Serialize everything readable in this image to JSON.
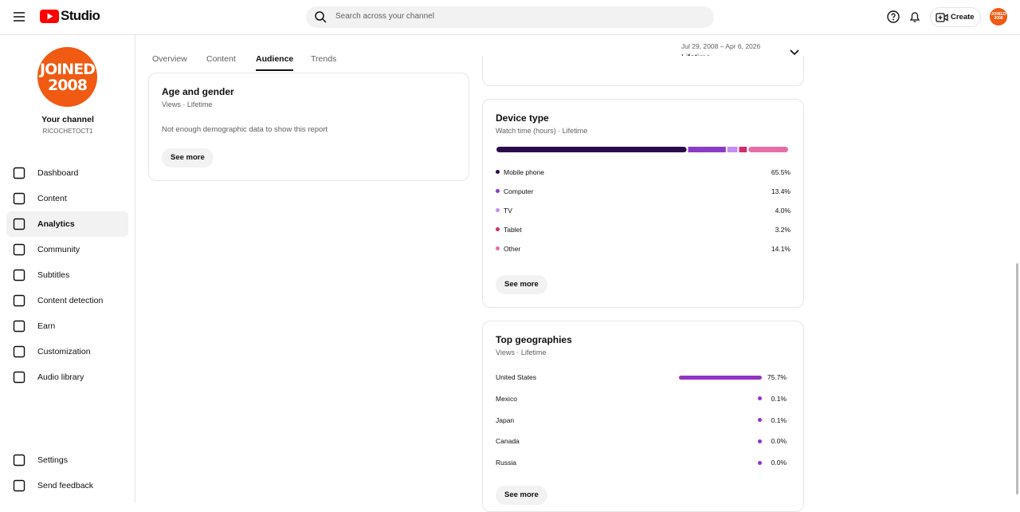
{
  "header": {
    "logo": "Studio",
    "search_placeholder": "Search across your channel",
    "create": "Create"
  },
  "channel": {
    "avatar_lines": [
      "JOINED",
      "2008"
    ],
    "title": "Your channel",
    "handle": "RICOCHETOCT1"
  },
  "nav": [
    "Dashboard",
    "Content",
    "Analytics",
    "Community",
    "Subtitles",
    "Content detection",
    "Earn",
    "Customization",
    "Audio library"
  ],
  "nav_active": 2,
  "nav_bottom": [
    "Settings",
    "Send feedback"
  ],
  "tabs": [
    "Overview",
    "Content",
    "Audience",
    "Trends"
  ],
  "tab_active": 2,
  "date_range": {
    "dates": "Jul 29, 2008 – Apr 6, 2026",
    "label": "Lifetime"
  },
  "age_gender": {
    "title": "Age and gender",
    "subtitle": "Views · Lifetime",
    "message": "Not enough demographic data to show this report",
    "button": "See more"
  },
  "device_type": {
    "title": "Device type",
    "subtitle": "Watch time (hours) · Lifetime",
    "categories": [
      "Mobile phone",
      "Computer",
      "TV",
      "Tablet",
      "Other"
    ],
    "values": [
      65.5,
      13.4,
      4.0,
      3.2,
      14.1
    ],
    "value_labels": [
      "65.5%",
      "13.4%",
      "4.0%",
      "3.2%",
      "14.1%"
    ],
    "colors": [
      "#2a0a4d",
      "#8a3bc4",
      "#c58cf2",
      "#d22d6b",
      "#e46ea8"
    ],
    "button": "See more"
  },
  "top_geographies": {
    "title": "Top geographies",
    "subtitle": "Views · Lifetime",
    "categories": [
      "United States",
      "Mexico",
      "Japan",
      "Canada",
      "Russia"
    ],
    "values": [
      75.7,
      0.1,
      0.1,
      0.0,
      0.0
    ],
    "value_labels": [
      "75.7%",
      "0.1%",
      "0.1%",
      "0.0%",
      "0.0%"
    ],
    "color": "#9334c8",
    "button": "See more"
  }
}
